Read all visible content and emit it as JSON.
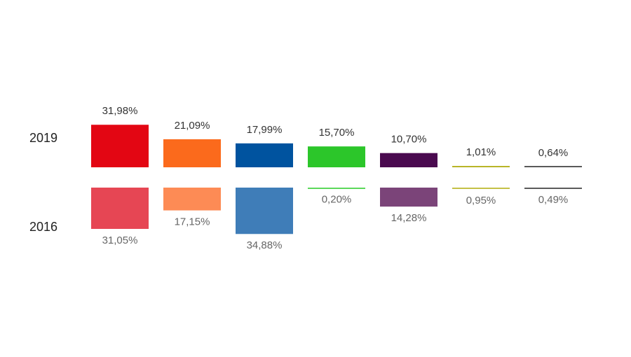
{
  "chart_data": {
    "type": "bar",
    "categories": [
      null,
      null,
      null,
      null,
      null,
      null,
      null
    ],
    "series": [
      {
        "name": "2019",
        "colors": [
          "#e30613",
          "#fb6a1c",
          "#00539f",
          "#2cc62a",
          "#4a0a4f",
          "#b9b528",
          "#5a5a5a"
        ],
        "values": [
          31.98,
          21.09,
          17.99,
          15.7,
          10.7,
          1.01,
          0.64
        ],
        "value_labels": [
          "31,98%",
          "21,09%",
          "17,99%",
          "15,70%",
          "10,70%",
          "1,01%",
          "0,64%"
        ]
      },
      {
        "name": "2016",
        "colors": [
          "#e64654",
          "#fd8b55",
          "#3f7db8",
          "#5bd85a",
          "#7b4479",
          "#c4c147",
          "#5a5a5a"
        ],
        "values": [
          31.05,
          17.15,
          34.88,
          0.2,
          14.28,
          0.95,
          0.49
        ],
        "value_labels": [
          "31,05%",
          "17,15%",
          "34,88%",
          "0,20%",
          "14,28%",
          "0,95%",
          "0,49%"
        ]
      }
    ]
  }
}
